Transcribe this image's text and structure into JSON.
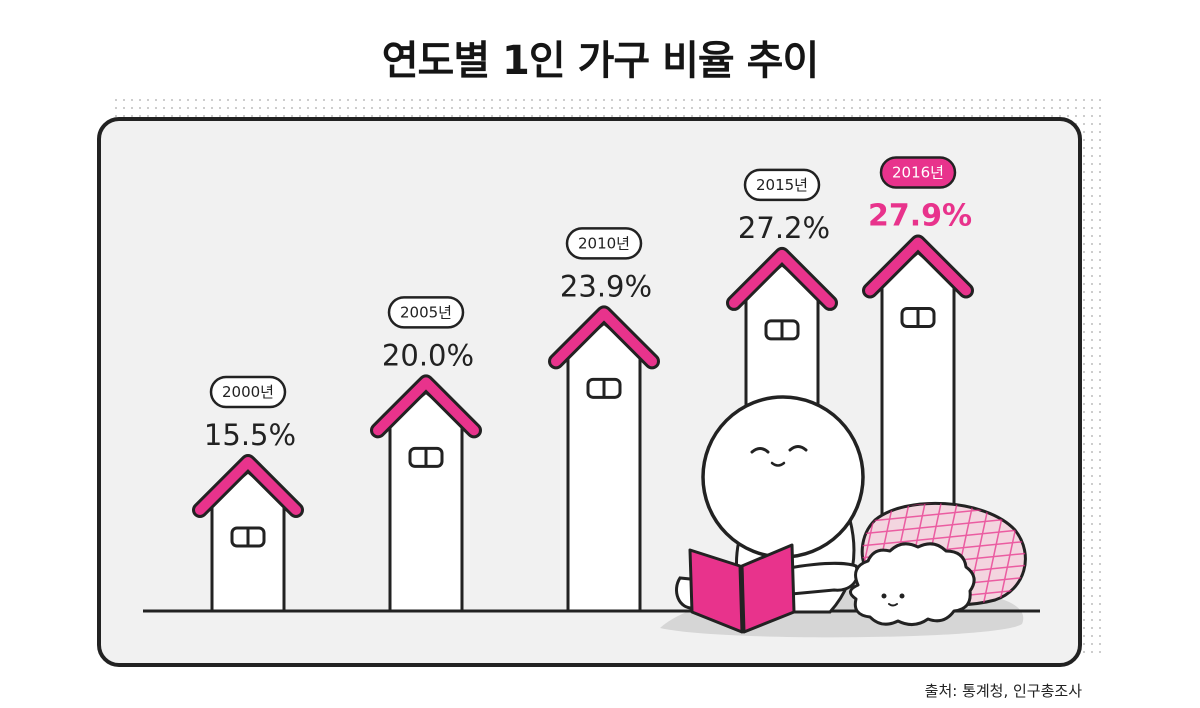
{
  "chart_data": {
    "type": "bar",
    "title": "연도별 1인 가구 비율 추이",
    "categories": [
      "2000년",
      "2005년",
      "2010년",
      "2015년",
      "2016년"
    ],
    "values": [
      15.5,
      20.0,
      23.9,
      27.2,
      27.9
    ],
    "value_labels": [
      "15.5%",
      "20.0%",
      "23.9%",
      "27.2%",
      "27.9%"
    ],
    "highlight_index": 4,
    "ylim": [
      0,
      30
    ],
    "grid": false,
    "source": "출처: 통계청, 인구총조사"
  },
  "colors": {
    "accent": "#e8338c",
    "outline": "#222222",
    "panel": "#f1f1f1",
    "house": "#ffffff",
    "blanket": "#f3d5df",
    "shadow": "#d6d6d6"
  },
  "decor": {
    "character": "round-head-character-reading-book-icon",
    "pillow": "plaid-pillow-icon",
    "dog": "fluffy-dog-icon"
  }
}
